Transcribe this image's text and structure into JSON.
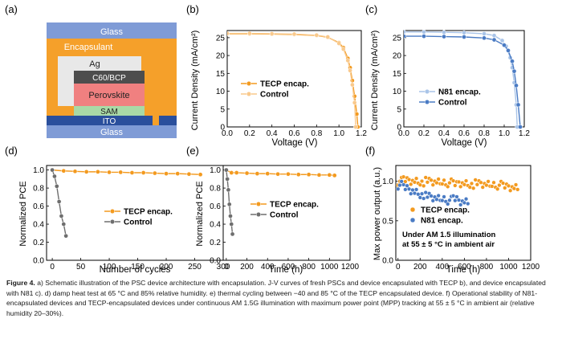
{
  "panels": {
    "a": {
      "label": "(a)",
      "layers": {
        "glass_top": "Glass",
        "encapsulant": "Encapsulant",
        "ag": "Ag",
        "c60": "C60/BCP",
        "perovskite": "Perovskite",
        "sam": "SAM",
        "ito": "ITO",
        "glass_bottom": "Glass"
      }
    },
    "b": {
      "label": "(b)"
    },
    "c": {
      "label": "(c)"
    },
    "d": {
      "label": "(d)"
    },
    "e": {
      "label": "(e)"
    },
    "f": {
      "label": "(f)"
    }
  },
  "colors": {
    "orange": "#f39a1f",
    "orange_light": "#f9c98c",
    "gray": "#6e6e6e",
    "gray_light": "#b8b8b8",
    "blue": "#4a7bc4",
    "blue_light": "#a9c4e8",
    "glass": "#7f9bd6",
    "encapsulant": "#f5a02a",
    "ag": "#e8e8e8",
    "c60": "#4d4d4d",
    "perovskite": "#f08080",
    "sam": "#a9d9a6",
    "ito": "#2a4f9c"
  },
  "chart_data": [
    {
      "id": "b",
      "type": "line",
      "title": "",
      "xlabel": "Voltage (V)",
      "ylabel": "Current Density (mA/cm²)",
      "xlim": [
        0.0,
        1.2
      ],
      "ylim": [
        0,
        27
      ],
      "xticks": [
        "0.0",
        "0.2",
        "0.4",
        "0.6",
        "0.8",
        "1.0",
        "1.2"
      ],
      "yticks": [
        "0",
        "5",
        "10",
        "15",
        "20",
        "25"
      ],
      "legend_position": "middle-left",
      "series": [
        {
          "name": "TECP encap.",
          "color_key": "orange",
          "x": [
            0.0,
            0.2,
            0.4,
            0.6,
            0.8,
            0.9,
            1.0,
            1.04,
            1.08,
            1.1,
            1.12,
            1.14,
            1.16,
            1.17
          ],
          "y": [
            26.1,
            26.1,
            26.0,
            25.9,
            25.6,
            25.1,
            23.6,
            22.2,
            19.2,
            16.6,
            13.0,
            8.6,
            3.6,
            0.0
          ]
        },
        {
          "name": "Control",
          "color_key": "orange_light",
          "x": [
            0.0,
            0.2,
            0.4,
            0.6,
            0.8,
            0.9,
            1.0,
            1.04,
            1.08,
            1.1,
            1.12,
            1.14,
            1.15
          ],
          "y": [
            26.2,
            26.2,
            26.1,
            26.0,
            25.7,
            25.2,
            23.4,
            21.8,
            18.6,
            15.8,
            11.8,
            6.8,
            0.0
          ]
        }
      ]
    },
    {
      "id": "c",
      "type": "line",
      "title": "",
      "xlabel": "Voltage (V)",
      "ylabel": "Current Density (mA/cm²)",
      "xlim": [
        0.0,
        1.2
      ],
      "ylim": [
        0,
        27
      ],
      "xticks": [
        "0.0",
        "0.2",
        "0.4",
        "0.6",
        "0.8",
        "1.0",
        "1.2"
      ],
      "yticks": [
        "0",
        "5",
        "10",
        "15",
        "20",
        "25"
      ],
      "legend_position": "middle-left",
      "series": [
        {
          "name": "N81 encap.",
          "color_key": "blue_light",
          "x": [
            0.0,
            0.2,
            0.4,
            0.6,
            0.8,
            0.9,
            0.98,
            1.02,
            1.06,
            1.08,
            1.1,
            1.12,
            1.13
          ],
          "y": [
            26.6,
            26.6,
            26.5,
            26.4,
            26.1,
            25.6,
            24.2,
            22.6,
            19.4,
            16.6,
            12.4,
            6.2,
            0.0
          ]
        },
        {
          "name": "Control",
          "color_key": "blue",
          "x": [
            0.0,
            0.2,
            0.4,
            0.6,
            0.8,
            0.9,
            1.0,
            1.04,
            1.08,
            1.1,
            1.12,
            1.14,
            1.16
          ],
          "y": [
            25.4,
            25.4,
            25.3,
            25.2,
            24.9,
            24.4,
            22.9,
            21.4,
            18.4,
            15.6,
            11.6,
            6.2,
            0.0
          ]
        }
      ]
    },
    {
      "id": "d",
      "type": "line",
      "title": "",
      "xlabel": "Number of cycles",
      "ylabel": "Normalized PCE",
      "xlim": [
        -10,
        300
      ],
      "ylim": [
        0.0,
        1.05
      ],
      "xticks": [
        "0",
        "50",
        "100",
        "150",
        "200",
        "250",
        "300"
      ],
      "yticks": [
        "0.0",
        "0.2",
        "0.4",
        "0.6",
        "0.8",
        "1.0"
      ],
      "legend_position": "middle-right",
      "series": [
        {
          "name": "TECP encap.",
          "color_key": "orange",
          "x": [
            0,
            20,
            40,
            60,
            80,
            100,
            120,
            140,
            160,
            180,
            200,
            220,
            240,
            260
          ],
          "y": [
            1.0,
            0.99,
            0.985,
            0.98,
            0.98,
            0.975,
            0.975,
            0.97,
            0.97,
            0.965,
            0.96,
            0.96,
            0.955,
            0.95
          ]
        },
        {
          "name": "Control",
          "color_key": "gray",
          "x": [
            0,
            4,
            8,
            12,
            16,
            20,
            24
          ],
          "y": [
            1.0,
            0.93,
            0.82,
            0.65,
            0.49,
            0.4,
            0.27
          ]
        }
      ]
    },
    {
      "id": "e",
      "type": "line",
      "title": "",
      "xlabel": "Time (h)",
      "ylabel": "Normalized PCE",
      "xlim": [
        -30,
        1200
      ],
      "ylim": [
        0.0,
        1.05
      ],
      "xticks": [
        "0",
        "200",
        "400",
        "600",
        "800",
        "1000",
        "1200"
      ],
      "yticks": [
        "0.0",
        "0.2",
        "0.4",
        "0.6",
        "0.8",
        "1.0"
      ],
      "legend_position": "middle-right",
      "series": [
        {
          "name": "TECP encap.",
          "color_key": "orange",
          "x": [
            0,
            50,
            100,
            200,
            300,
            400,
            500,
            600,
            700,
            800,
            900,
            1000,
            1050
          ],
          "y": [
            1.0,
            0.97,
            0.97,
            0.965,
            0.96,
            0.96,
            0.955,
            0.955,
            0.95,
            0.95,
            0.945,
            0.945,
            0.94
          ]
        },
        {
          "name": "Control",
          "color_key": "gray",
          "x": [
            0,
            10,
            20,
            30,
            40,
            50,
            60
          ],
          "y": [
            1.0,
            0.9,
            0.78,
            0.62,
            0.49,
            0.4,
            0.29
          ]
        }
      ]
    },
    {
      "id": "f",
      "type": "scatter",
      "title": "",
      "xlabel": "Time (h)",
      "ylabel": "Max power output (a.u.)",
      "xlim": [
        -20,
        1200
      ],
      "ylim": [
        0.0,
        1.2
      ],
      "xticks": [
        "0",
        "200",
        "400",
        "600",
        "800",
        "1000",
        "1200"
      ],
      "yticks": [
        "0.0",
        "0.5",
        "1.0"
      ],
      "legend_position": "middle-left",
      "series": [
        {
          "name": "TECP encap.",
          "color_key": "orange",
          "x": [
            0,
            50,
            100,
            150,
            200,
            250,
            300,
            350,
            400,
            450,
            500,
            550,
            600,
            650,
            700,
            750,
            800,
            850,
            900,
            950,
            1000,
            1050
          ],
          "y": [
            1.0,
            1.02,
            1.01,
            1.0,
            0.99,
            1.0,
            0.99,
            0.98,
            0.99,
            0.98,
            0.97,
            0.98,
            0.97,
            0.96,
            0.97,
            0.96,
            0.95,
            0.96,
            0.95,
            0.94,
            0.93,
            0.92
          ]
        },
        {
          "name": "N81 encap.",
          "color_key": "blue",
          "x": [
            0,
            50,
            100,
            150,
            200,
            250,
            300,
            350,
            400,
            450,
            500,
            550,
            600
          ],
          "y": [
            0.95,
            0.92,
            0.89,
            0.86,
            0.83,
            0.81,
            0.79,
            0.77,
            0.78,
            0.76,
            0.78,
            0.75,
            0.74
          ]
        }
      ],
      "annotation_lines": [
        "Under AM 1.5 illumination",
        "at 55 ± 5 °C in ambient air"
      ]
    }
  ],
  "caption": {
    "label": "Figure 4.",
    "text": " a) Schematic illustration of the PSC device architecture with encapsulation. J-V curves of fresh PSCs and device encapsulated with TECP b), and device encapsulated with N81 c). d) damp heat test at 65 °C and 85% relative humidity. e) thermal cycling between −40 and 85 °C of the TECP encapsulated device. f) Operational stability of N81-encapsulated devices and TECP-encapsulated devices under continuous AM 1.5G illumination with maximum power point (MPP) tracking at 55 ± 5 °C in ambient air (relative humidity 20–30%)."
  }
}
